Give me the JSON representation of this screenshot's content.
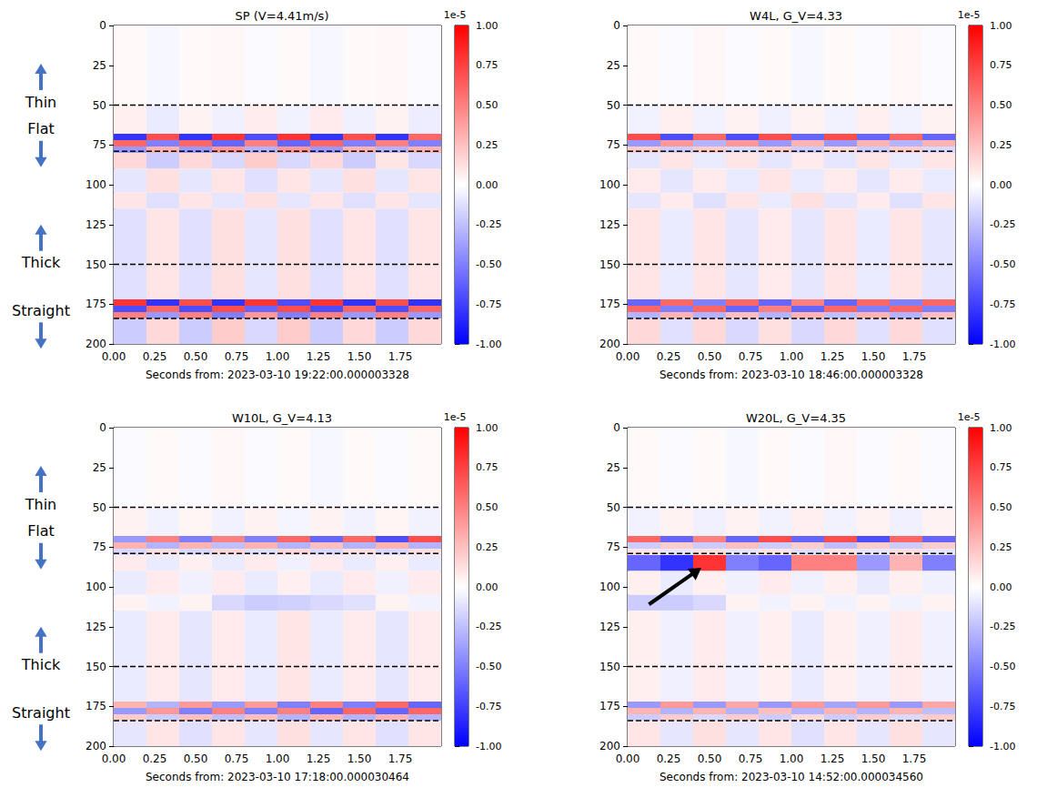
{
  "chart_data": [
    {
      "type": "heatmap",
      "title": "SP (V=4.41m/s)",
      "xlabel": "Seconds from: 2023-03-10 19:22:00.000003328",
      "xlim": [
        0,
        2.0
      ],
      "ylim": [
        200,
        0
      ],
      "xticks": [
        {
          "value": 0,
          "label": "0.00"
        },
        {
          "value": 0.25,
          "label": "0.25"
        },
        {
          "value": 0.5,
          "label": "0.50"
        },
        {
          "value": 0.75,
          "label": "0.75"
        },
        {
          "value": 1.0,
          "label": "1.00"
        },
        {
          "value": 1.25,
          "label": "1.25"
        },
        {
          "value": 1.5,
          "label": "1.50"
        },
        {
          "value": 1.75,
          "label": "1.75"
        }
      ],
      "yticks": [
        0,
        25,
        50,
        75,
        100,
        125,
        150,
        175,
        200
      ],
      "x_edges": [
        0,
        0.2,
        0.4,
        0.6,
        0.8,
        1.0,
        1.2,
        1.4,
        1.6,
        1.8,
        2.0
      ],
      "y_edges": [
        0,
        50,
        68,
        72,
        76,
        80,
        90,
        105,
        115,
        172,
        176,
        180,
        184,
        200
      ],
      "cells": [
        [
          0.02,
          -0.03,
          0.02,
          0.03,
          -0.02,
          0.02,
          -0.03,
          0.02,
          0.03,
          -0.02
        ],
        [
          0.06,
          -0.08,
          0.05,
          -0.06,
          0.07,
          -0.05,
          0.08,
          -0.06,
          0.05,
          -0.07
        ],
        [
          -0.8,
          0.7,
          -0.8,
          0.8,
          -0.7,
          0.8,
          -0.8,
          0.7,
          -0.8,
          0.6
        ],
        [
          0.6,
          -0.5,
          0.6,
          -0.6,
          0.5,
          -0.6,
          0.6,
          -0.5,
          0.5,
          -0.5
        ],
        [
          -0.4,
          0.3,
          -0.4,
          0.4,
          -0.3,
          0.4,
          -0.4,
          0.3,
          -0.3,
          0.3
        ],
        [
          0.15,
          -0.2,
          0.15,
          -0.15,
          0.2,
          -0.15,
          0.15,
          -0.2,
          0.1,
          -0.15
        ],
        [
          -0.1,
          0.12,
          -0.1,
          0.1,
          -0.12,
          0.1,
          -0.1,
          0.12,
          -0.1,
          0.1
        ],
        [
          0.1,
          -0.12,
          0.1,
          -0.1,
          0.12,
          -0.1,
          0.1,
          -0.12,
          0.1,
          -0.1
        ],
        [
          -0.12,
          0.1,
          -0.12,
          0.12,
          -0.1,
          0.12,
          -0.12,
          0.1,
          -0.12,
          0.1
        ],
        [
          0.8,
          -0.8,
          0.7,
          -0.8,
          0.8,
          -0.7,
          0.8,
          -0.8,
          0.7,
          -0.8
        ],
        [
          -0.7,
          0.6,
          -0.7,
          0.7,
          -0.6,
          0.7,
          -0.7,
          0.6,
          -0.7,
          0.6
        ],
        [
          0.5,
          -0.4,
          0.5,
          -0.5,
          0.4,
          -0.5,
          0.5,
          -0.4,
          0.5,
          -0.4
        ],
        [
          -0.2,
          0.15,
          -0.2,
          0.2,
          -0.15,
          0.2,
          -0.2,
          0.15,
          -0.2,
          0.15
        ]
      ],
      "colorbar": {
        "range": [
          -1,
          1
        ],
        "offset_label": "1e-5",
        "colors": [
          "#0000ff",
          "#ffffff",
          "#ff0000"
        ],
        "ticks": [
          {
            "value": -1,
            "label": "-1.00"
          },
          {
            "value": -0.75,
            "label": "-0.75"
          },
          {
            "value": -0.5,
            "label": "-0.50"
          },
          {
            "value": -0.25,
            "label": "-0.25"
          },
          {
            "value": 0,
            "label": "0.00"
          },
          {
            "value": 0.25,
            "label": "0.25"
          },
          {
            "value": 0.5,
            "label": "0.50"
          },
          {
            "value": 0.75,
            "label": "0.75"
          },
          {
            "value": 1,
            "label": "1.00"
          }
        ]
      },
      "reference_lines": [
        50,
        79,
        150,
        184
      ]
    },
    {
      "type": "heatmap",
      "title": "W4L, G_V=4.33",
      "xlabel": "Seconds from: 2023-03-10 18:46:00.000003328",
      "xlim": [
        0,
        2.0
      ],
      "ylim": [
        200,
        0
      ],
      "xticks": [
        {
          "value": 0,
          "label": "0.00"
        },
        {
          "value": 0.25,
          "label": "0.25"
        },
        {
          "value": 0.5,
          "label": "0.50"
        },
        {
          "value": 0.75,
          "label": "0.75"
        },
        {
          "value": 1.0,
          "label": "1.00"
        },
        {
          "value": 1.25,
          "label": "1.25"
        },
        {
          "value": 1.5,
          "label": "1.50"
        },
        {
          "value": 1.75,
          "label": "1.75"
        }
      ],
      "yticks": [
        0,
        25,
        50,
        75,
        100,
        125,
        150,
        175,
        200
      ],
      "x_edges": [
        0,
        0.2,
        0.4,
        0.6,
        0.8,
        1.0,
        1.2,
        1.4,
        1.6,
        1.8,
        2.0
      ],
      "y_edges": [
        0,
        50,
        68,
        72,
        76,
        80,
        90,
        105,
        115,
        172,
        176,
        180,
        184,
        200
      ],
      "cells": [
        [
          0.02,
          -0.02,
          0.03,
          -0.02,
          0.02,
          -0.03,
          0.02,
          -0.02,
          0.03,
          -0.02
        ],
        [
          -0.05,
          0.06,
          -0.05,
          0.05,
          -0.06,
          0.05,
          -0.05,
          0.06,
          -0.05,
          0.05
        ],
        [
          0.7,
          -0.7,
          0.6,
          -0.7,
          0.7,
          -0.6,
          0.7,
          -0.6,
          0.6,
          -0.6
        ],
        [
          -0.4,
          0.4,
          -0.3,
          0.4,
          -0.4,
          0.3,
          -0.4,
          0.3,
          -0.3,
          0.3
        ],
        [
          0.2,
          -0.2,
          0.2,
          -0.15,
          0.2,
          -0.2,
          0.15,
          -0.2,
          0.2,
          -0.15
        ],
        [
          -0.1,
          0.1,
          -0.08,
          0.1,
          -0.1,
          0.08,
          -0.1,
          0.1,
          -0.08,
          0.1
        ],
        [
          0.08,
          -0.1,
          0.08,
          -0.08,
          0.1,
          -0.08,
          0.08,
          -0.1,
          0.08,
          -0.08
        ],
        [
          -0.1,
          0.08,
          -0.12,
          0.1,
          -0.08,
          0.12,
          -0.1,
          0.08,
          -0.12,
          0.1
        ],
        [
          0.1,
          -0.08,
          0.1,
          -0.1,
          0.08,
          -0.1,
          0.1,
          -0.08,
          0.1,
          -0.1
        ],
        [
          -0.6,
          0.6,
          -0.5,
          0.6,
          -0.6,
          0.5,
          -0.6,
          0.6,
          -0.5,
          0.6
        ],
        [
          0.6,
          -0.5,
          0.6,
          -0.6,
          0.5,
          -0.6,
          0.6,
          -0.5,
          0.6,
          -0.5
        ],
        [
          -0.3,
          0.3,
          -0.3,
          0.25,
          -0.3,
          0.3,
          -0.25,
          0.3,
          -0.3,
          0.25
        ],
        [
          0.15,
          -0.12,
          0.15,
          -0.15,
          0.12,
          -0.15,
          0.15,
          -0.12,
          0.15,
          -0.12
        ]
      ],
      "colorbar": {
        "range": [
          -1,
          1
        ],
        "offset_label": "1e-5",
        "colors": [
          "#0000ff",
          "#ffffff",
          "#ff0000"
        ],
        "ticks": [
          {
            "value": -1,
            "label": "-1.00"
          },
          {
            "value": -0.75,
            "label": "-0.75"
          },
          {
            "value": -0.5,
            "label": "-0.50"
          },
          {
            "value": -0.25,
            "label": "-0.25"
          },
          {
            "value": 0,
            "label": "0.00"
          },
          {
            "value": 0.25,
            "label": "0.25"
          },
          {
            "value": 0.5,
            "label": "0.50"
          },
          {
            "value": 0.75,
            "label": "0.75"
          },
          {
            "value": 1,
            "label": "1.00"
          }
        ]
      },
      "reference_lines": [
        50,
        79,
        150,
        184
      ]
    },
    {
      "type": "heatmap",
      "title": "W10L, G_V=4.13",
      "xlabel": "Seconds from: 2023-03-10 17:18:00.000030464",
      "xlim": [
        0,
        2.0
      ],
      "ylim": [
        200,
        0
      ],
      "xticks": [
        {
          "value": 0,
          "label": "0.00"
        },
        {
          "value": 0.25,
          "label": "0.25"
        },
        {
          "value": 0.5,
          "label": "0.50"
        },
        {
          "value": 0.75,
          "label": "0.75"
        },
        {
          "value": 1.0,
          "label": "1.00"
        },
        {
          "value": 1.25,
          "label": "1.25"
        },
        {
          "value": 1.5,
          "label": "1.50"
        },
        {
          "value": 1.75,
          "label": "1.75"
        }
      ],
      "yticks": [
        0,
        25,
        50,
        75,
        100,
        125,
        150,
        175,
        200
      ],
      "x_edges": [
        0,
        0.2,
        0.4,
        0.6,
        0.8,
        1.0,
        1.2,
        1.4,
        1.6,
        1.8,
        2.0
      ],
      "y_edges": [
        0,
        50,
        68,
        72,
        76,
        80,
        90,
        105,
        115,
        172,
        176,
        180,
        184,
        200
      ],
      "cells": [
        [
          -0.02,
          0.02,
          -0.02,
          0.03,
          -0.02,
          0.02,
          -0.03,
          0.02,
          -0.02,
          0.02
        ],
        [
          0.05,
          -0.05,
          0.04,
          -0.05,
          0.05,
          -0.04,
          0.05,
          -0.05,
          0.04,
          -0.05
        ],
        [
          -0.4,
          0.5,
          -0.5,
          0.5,
          -0.5,
          0.6,
          -0.6,
          0.6,
          -0.7,
          0.7
        ],
        [
          0.3,
          -0.3,
          0.3,
          -0.25,
          0.3,
          -0.3,
          0.25,
          -0.3,
          0.3,
          -0.3
        ],
        [
          -0.15,
          0.12,
          -0.15,
          0.15,
          -0.12,
          0.15,
          -0.15,
          0.12,
          -0.15,
          0.12
        ],
        [
          0.08,
          -0.08,
          0.06,
          -0.08,
          0.08,
          -0.06,
          0.08,
          -0.08,
          0.06,
          -0.08
        ],
        [
          -0.08,
          0.08,
          -0.06,
          0.08,
          -0.08,
          0.06,
          -0.08,
          0.08,
          -0.06,
          0.08
        ],
        [
          0.05,
          -0.05,
          0.05,
          -0.15,
          -0.2,
          -0.18,
          -0.15,
          -0.12,
          0.05,
          -0.05
        ],
        [
          -0.08,
          0.08,
          -0.1,
          0.08,
          -0.08,
          0.1,
          -0.08,
          0.08,
          -0.1,
          0.08
        ],
        [
          0.3,
          -0.3,
          0.4,
          -0.4,
          0.4,
          -0.5,
          0.5,
          -0.5,
          0.6,
          -0.6
        ],
        [
          -0.4,
          0.4,
          -0.5,
          0.5,
          -0.5,
          0.5,
          -0.6,
          0.6,
          -0.6,
          0.6
        ],
        [
          0.2,
          -0.2,
          0.25,
          -0.25,
          0.25,
          -0.3,
          0.3,
          -0.3,
          0.3,
          -0.3
        ],
        [
          -0.1,
          0.1,
          -0.12,
          0.1,
          -0.1,
          0.12,
          -0.1,
          0.1,
          -0.12,
          0.1
        ]
      ],
      "colorbar": {
        "range": [
          -1,
          1
        ],
        "offset_label": "1e-5",
        "colors": [
          "#0000ff",
          "#ffffff",
          "#ff0000"
        ],
        "ticks": [
          {
            "value": -1,
            "label": "-1.00"
          },
          {
            "value": -0.75,
            "label": "-0.75"
          },
          {
            "value": -0.5,
            "label": "-0.50"
          },
          {
            "value": -0.25,
            "label": "-0.25"
          },
          {
            "value": 0,
            "label": "0.00"
          },
          {
            "value": 0.25,
            "label": "0.25"
          },
          {
            "value": 0.5,
            "label": "0.50"
          },
          {
            "value": 0.75,
            "label": "0.75"
          },
          {
            "value": 1,
            "label": "1.00"
          }
        ]
      },
      "reference_lines": [
        50,
        79,
        150,
        184
      ]
    },
    {
      "type": "heatmap",
      "title": "W20L, G_V=4.35",
      "xlabel": "Seconds from: 2023-03-10 14:52:00.000034560",
      "xlim": [
        0,
        2.0
      ],
      "ylim": [
        200,
        0
      ],
      "xticks": [
        {
          "value": 0,
          "label": "0.00"
        },
        {
          "value": 0.25,
          "label": "0.25"
        },
        {
          "value": 0.5,
          "label": "0.50"
        },
        {
          "value": 0.75,
          "label": "0.75"
        },
        {
          "value": 1.0,
          "label": "1.00"
        },
        {
          "value": 1.25,
          "label": "1.25"
        },
        {
          "value": 1.5,
          "label": "1.50"
        },
        {
          "value": 1.75,
          "label": "1.75"
        }
      ],
      "yticks": [
        0,
        25,
        50,
        75,
        100,
        125,
        150,
        175,
        200
      ],
      "x_edges": [
        0,
        0.2,
        0.4,
        0.6,
        0.8,
        1.0,
        1.2,
        1.4,
        1.6,
        1.8,
        2.0
      ],
      "y_edges": [
        0,
        50,
        68,
        72,
        76,
        80,
        90,
        105,
        115,
        172,
        176,
        180,
        184,
        200
      ],
      "cells": [
        [
          0.02,
          -0.02,
          0.02,
          -0.03,
          0.02,
          -0.02,
          0.03,
          -0.02,
          0.02,
          -0.02
        ],
        [
          -0.05,
          0.05,
          -0.06,
          0.05,
          -0.05,
          0.06,
          -0.05,
          0.05,
          -0.06,
          0.05
        ],
        [
          0.6,
          -0.6,
          0.5,
          -0.6,
          0.7,
          -0.6,
          0.7,
          -0.7,
          0.6,
          -0.6
        ],
        [
          -0.2,
          0.2,
          -0.2,
          0.25,
          -0.2,
          0.2,
          -0.25,
          0.2,
          -0.2,
          0.2
        ],
        [
          0.1,
          -0.1,
          0.12,
          -0.1,
          0.1,
          -0.12,
          0.1,
          -0.1,
          0.12,
          -0.1
        ],
        [
          -0.6,
          -0.8,
          0.8,
          -0.5,
          -0.6,
          0.5,
          0.5,
          -0.4,
          0.3,
          -0.5
        ],
        [
          0.06,
          -0.08,
          0.06,
          -0.06,
          0.08,
          -0.06,
          0.06,
          -0.08,
          0.06,
          -0.06
        ],
        [
          -0.2,
          -0.2,
          -0.15,
          0.05,
          -0.05,
          0.05,
          -0.05,
          0.05,
          -0.05,
          0.05
        ],
        [
          0.06,
          -0.06,
          0.08,
          -0.06,
          0.06,
          -0.08,
          0.06,
          -0.06,
          0.08,
          -0.06
        ],
        [
          -0.4,
          0.4,
          -0.4,
          0.35,
          -0.4,
          0.4,
          -0.35,
          0.4,
          -0.4,
          0.35
        ],
        [
          0.3,
          -0.3,
          0.3,
          -0.3,
          0.25,
          -0.3,
          0.3,
          -0.3,
          0.3,
          -0.25
        ],
        [
          -0.2,
          0.2,
          -0.15,
          0.2,
          -0.2,
          0.15,
          -0.2,
          0.2,
          -0.15,
          0.2
        ],
        [
          0.1,
          -0.1,
          0.12,
          -0.1,
          0.1,
          -0.12,
          0.1,
          -0.1,
          0.12,
          -0.1
        ]
      ],
      "colorbar": {
        "range": [
          -1,
          1
        ],
        "offset_label": "1e-5",
        "colors": [
          "#0000ff",
          "#ffffff",
          "#ff0000"
        ],
        "ticks": [
          {
            "value": -1,
            "label": "-1.00"
          },
          {
            "value": -0.75,
            "label": "-0.75"
          },
          {
            "value": -0.5,
            "label": "-0.50"
          },
          {
            "value": -0.25,
            "label": "-0.25"
          },
          {
            "value": 0,
            "label": "0.00"
          },
          {
            "value": 0.25,
            "label": "0.25"
          },
          {
            "value": 0.5,
            "label": "0.50"
          },
          {
            "value": 0.75,
            "label": "0.75"
          },
          {
            "value": 1,
            "label": "1.00"
          }
        ]
      },
      "reference_lines": [
        50,
        79,
        150,
        184
      ],
      "arrows": [
        {
          "from": [
            0.13,
            111
          ],
          "to": [
            0.45,
            88
          ]
        }
      ]
    }
  ],
  "side_labels": [
    {
      "text": "Thin",
      "y": 48
    },
    {
      "text": "Flat",
      "y": 65
    },
    {
      "text": "Thick",
      "y": 149
    },
    {
      "text": "Straight",
      "y": 179
    }
  ]
}
